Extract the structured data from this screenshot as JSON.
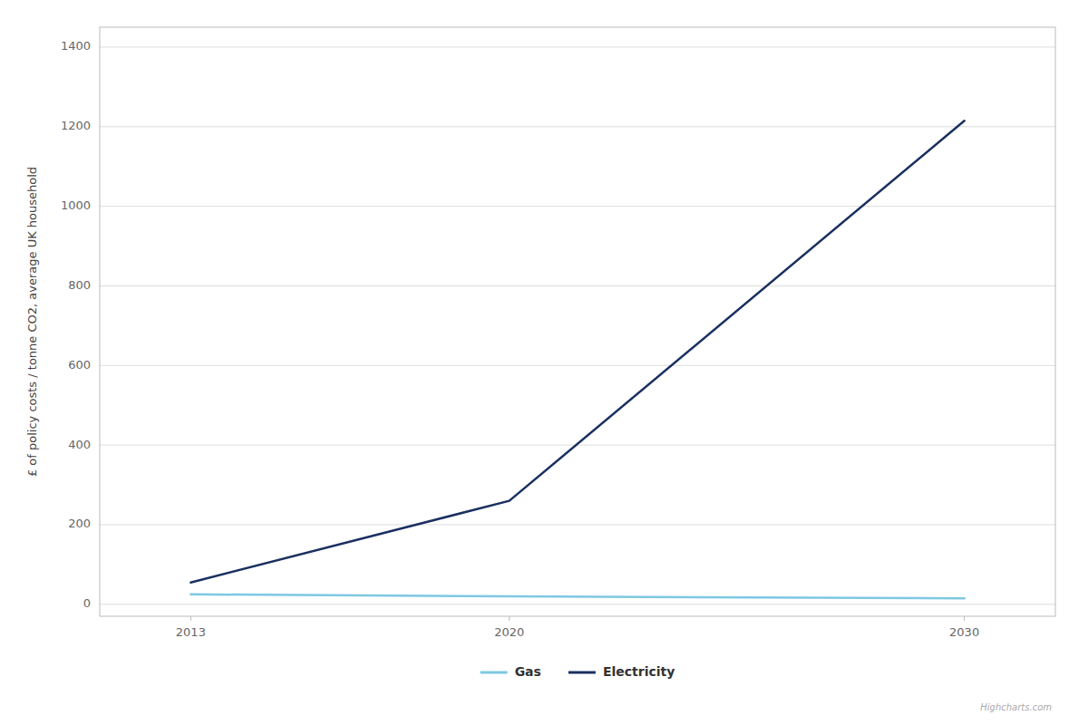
{
  "chart_data": {
    "type": "line",
    "y_label": "£ of policy costs / tonne CO2, average UK household",
    "x": [
      2013,
      2020,
      2030
    ],
    "series": [
      {
        "name": "Gas",
        "color": "#7ec8e3",
        "values": [
          25,
          20,
          15
        ]
      },
      {
        "name": "Electricity",
        "color": "#1a3060",
        "values": [
          55,
          260,
          1215
        ]
      }
    ],
    "xlim": [
      2011.0,
      2032.0
    ],
    "xticks": [
      2013,
      2020,
      2030
    ],
    "ylim": [
      -30,
      1450
    ],
    "yticks": [
      0,
      200,
      400,
      600,
      800,
      1000,
      1200,
      1400
    ],
    "grid": true,
    "legend": "bottom",
    "annotations": [
      "Highcharts.com"
    ]
  }
}
